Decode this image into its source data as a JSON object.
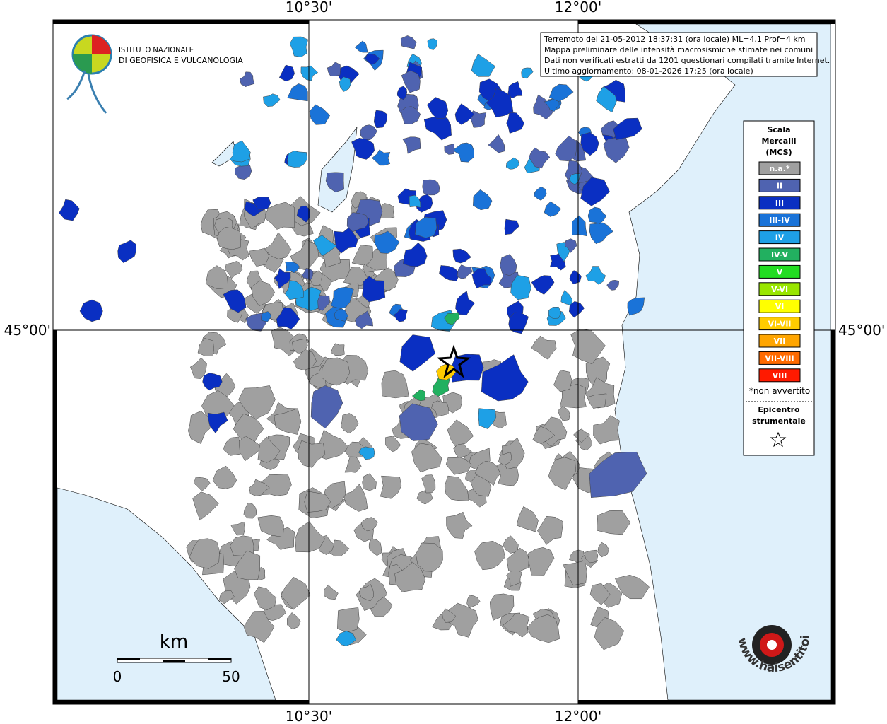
{
  "map": {
    "axis_labels": {
      "top": [
        "10°30'",
        "12°00'"
      ],
      "bottom": [
        "10°30'",
        "12°00'"
      ],
      "left": "45°00'",
      "right": "45°00'"
    },
    "logo": [
      "ISTITUTO NAZIONALE",
      "DI GEOFISICA E VULCANOLOGIA"
    ],
    "info_box": [
      "Terremoto del 21-05-2012 18:37:31 (ora locale) ML=4.1 Prof=4 km",
      "Mappa preliminare delle intensità macrosismiche stimate nei comuni",
      "Dati non verificati estratti da 1201 questionari compilati tramite Internet.",
      "Ultimo aggiornamento: 08-01-2026 17:25 (ora locale)"
    ],
    "legend": {
      "title": [
        "Scala",
        "Mercalli",
        "(MCS)"
      ],
      "items": [
        {
          "label": "n.a.*",
          "color": "#a0a0a0"
        },
        {
          "label": "II",
          "color": "#4f63b0"
        },
        {
          "label": "III",
          "color": "#0a2fc2"
        },
        {
          "label": "III-IV",
          "color": "#1a73d8"
        },
        {
          "label": "IV",
          "color": "#1ea0e6"
        },
        {
          "label": "IV-V",
          "color": "#22b060"
        },
        {
          "label": "V",
          "color": "#22dd22"
        },
        {
          "label": "V-VI",
          "color": "#99e600"
        },
        {
          "label": "VI",
          "color": "#ffff00"
        },
        {
          "label": "VI-VII",
          "color": "#ffcc00"
        },
        {
          "label": "VII",
          "color": "#ffa500"
        },
        {
          "label": "VII-VIII",
          "color": "#ff6a00"
        },
        {
          "label": "VIII",
          "color": "#ff1a00"
        }
      ],
      "note": "*non avvertito",
      "epicenter": [
        "Epicentro",
        "strumentale"
      ]
    },
    "scale_bar": {
      "unit": "km",
      "ticks": [
        0,
        50
      ]
    },
    "watermark": "www.haisentitoilterremoto.it"
  }
}
